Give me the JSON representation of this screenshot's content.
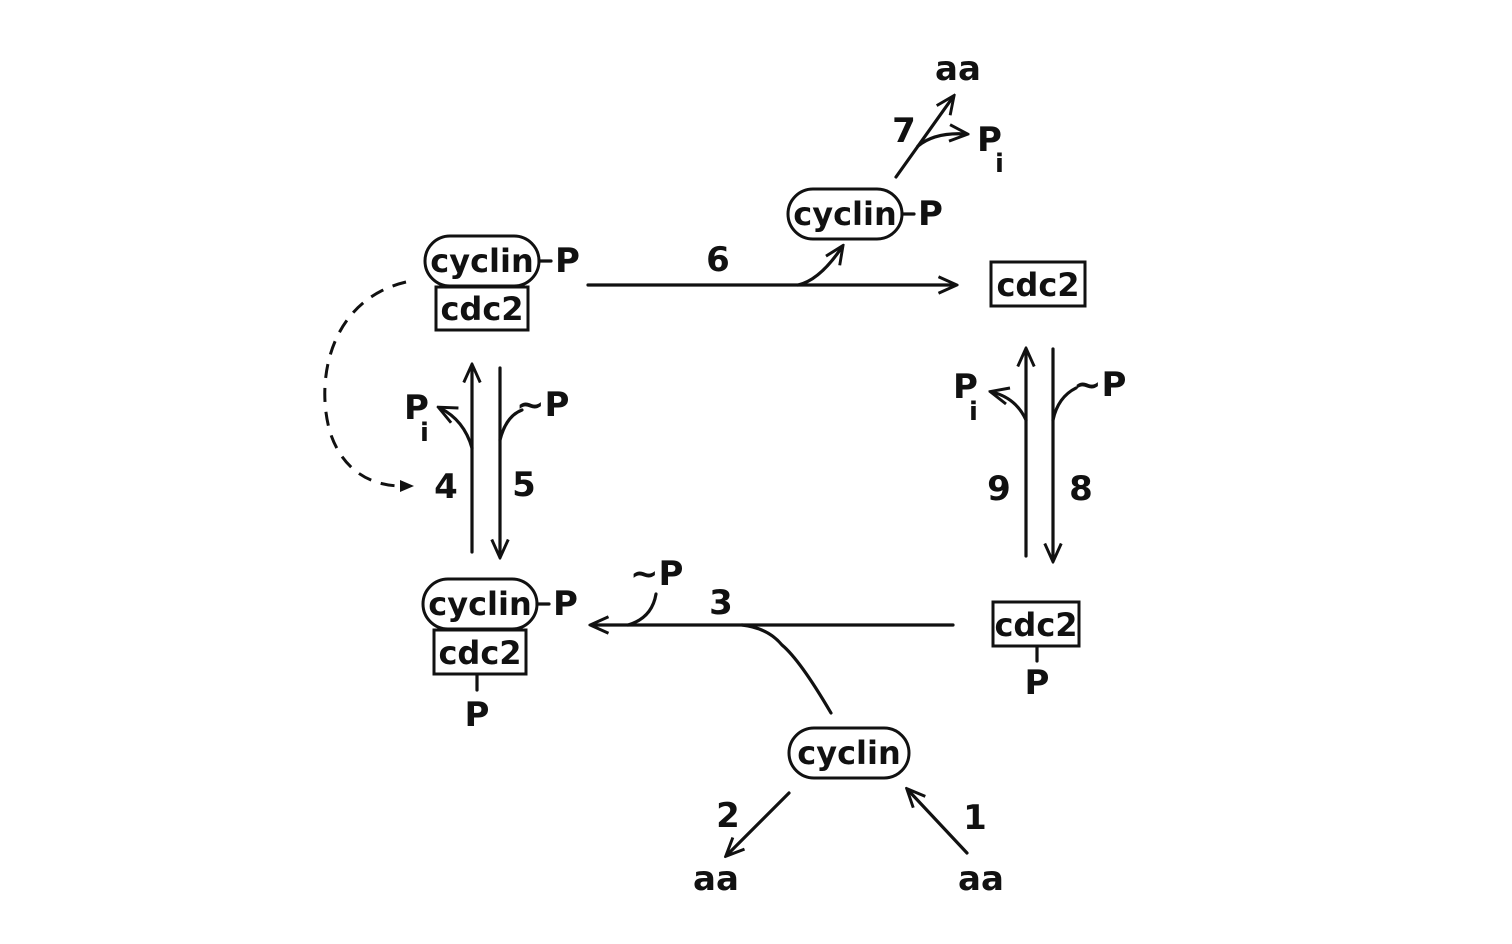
{
  "labels": {
    "cyclin": "cyclin",
    "cdc2": "cdc2",
    "p": "P",
    "tilde_p": "~P",
    "pi": "P",
    "pi_sub": "i",
    "aa": "aa"
  },
  "steps": [
    "1",
    "2",
    "3",
    "4",
    "5",
    "6",
    "7",
    "8",
    "9"
  ]
}
